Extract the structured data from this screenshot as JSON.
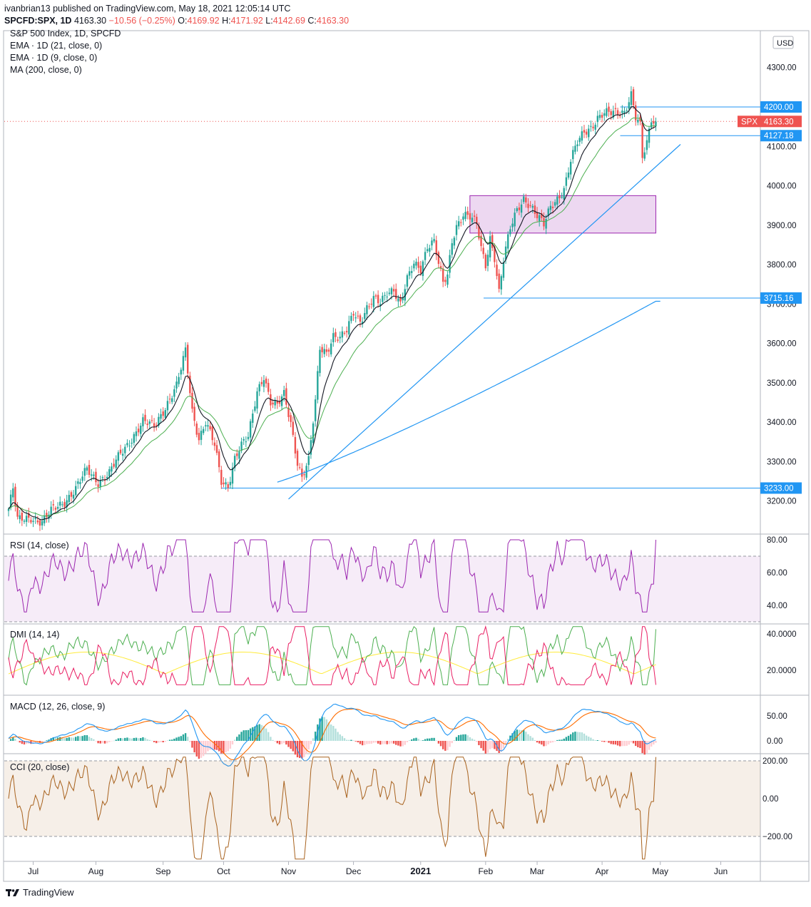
{
  "header": {
    "published_line": "ivanbrian13 published on TradingView.com, May 18, 2021 12:05:14 UTC",
    "symbol": "SPCFD:SPX, 1D",
    "price": "4163.30",
    "change": "−10.56 (−0.25%)",
    "o_label": "O:",
    "o": "4169.92",
    "h_label": "H:",
    "h": "4171.92",
    "l_label": "L:",
    "l": "4142.69",
    "c_label": "C:",
    "c": "4163.30"
  },
  "legend": {
    "title": "S&P 500 Index, 1D, SPCFD",
    "ema21": "EMA · 1D (21, close, 0)",
    "ema9": "EMA · 1D (9, close, 0)",
    "ma200": "MA (200, close, 0)"
  },
  "currency": "USD",
  "price_tag": {
    "symbol": "SPX",
    "value": "4163.30"
  },
  "level_tags": [
    "4200.00",
    "4127.18",
    "3715.16",
    "3233.00"
  ],
  "indicators": {
    "rsi": "RSI (14, close)",
    "dmi": "DMI (14, 14)",
    "macd": "MACD (12, 26, close, 9)",
    "cci": "CCI (20, close)"
  },
  "footer": {
    "brand": "TradingView"
  },
  "colors": {
    "up": "#26a69a",
    "down": "#ef5350",
    "ema9": "#131722",
    "ema21": "#4caf50",
    "ma200": "#2196f3",
    "trend": "#2196f3",
    "rsi": "#9c27b0",
    "macd": "#2196f3",
    "signal": "#ff6d00",
    "cci": "#a8621e",
    "dmi_plus": "#4caf50",
    "dmi_minus": "#e91e63",
    "adx": "#ffeb3b"
  },
  "chart_data": [
    {
      "type": "candlestick",
      "title": "S&P 500 Index, 1D, SPCFD",
      "x_ticks": [
        "Jul",
        "Aug",
        "Sep",
        "Oct",
        "Nov",
        "Dec",
        "2021",
        "Feb",
        "Mar",
        "Apr",
        "May",
        "Jun"
      ],
      "y_ticks": [
        3200,
        3300,
        3400,
        3500,
        3600,
        3700,
        3800,
        3900,
        4000,
        4100,
        4200,
        4300
      ],
      "ylim": [
        3120,
        4380
      ],
      "close_anchors": [
        [
          0,
          3180
        ],
        [
          2,
          3230
        ],
        [
          4,
          3150
        ],
        [
          10,
          3160
        ],
        [
          15,
          3145
        ],
        [
          20,
          3180
        ],
        [
          25,
          3200
        ],
        [
          30,
          3230
        ],
        [
          35,
          3280
        ],
        [
          40,
          3250
        ],
        [
          45,
          3270
        ],
        [
          50,
          3320
        ],
        [
          55,
          3360
        ],
        [
          60,
          3400
        ],
        [
          65,
          3390
        ],
        [
          70,
          3440
        ],
        [
          75,
          3490
        ],
        [
          79,
          3580
        ],
        [
          82,
          3430
        ],
        [
          85,
          3360
        ],
        [
          88,
          3400
        ],
        [
          92,
          3340
        ],
        [
          95,
          3250
        ],
        [
          98,
          3240
        ],
        [
          101,
          3310
        ],
        [
          104,
          3340
        ],
        [
          107,
          3360
        ],
        [
          111,
          3480
        ],
        [
          114,
          3520
        ],
        [
          117,
          3450
        ],
        [
          120,
          3440
        ],
        [
          123,
          3470
        ],
        [
          126,
          3400
        ],
        [
          129,
          3300
        ],
        [
          131,
          3260
        ],
        [
          134,
          3300
        ],
        [
          137,
          3450
        ],
        [
          139,
          3590
        ],
        [
          142,
          3580
        ],
        [
          145,
          3620
        ],
        [
          148,
          3610
        ],
        [
          151,
          3630
        ],
        [
          154,
          3680
        ],
        [
          157,
          3660
        ],
        [
          160,
          3690
        ],
        [
          163,
          3710
        ],
        [
          166,
          3700
        ],
        [
          169,
          3730
        ],
        [
          172,
          3740
        ],
        [
          175,
          3700
        ],
        [
          178,
          3760
        ],
        [
          181,
          3800
        ],
        [
          184,
          3790
        ],
        [
          187,
          3850
        ],
        [
          190,
          3860
        ],
        [
          192,
          3800
        ],
        [
          194,
          3750
        ],
        [
          196,
          3770
        ],
        [
          198,
          3860
        ],
        [
          200,
          3900
        ],
        [
          203,
          3930
        ],
        [
          206,
          3920
        ],
        [
          209,
          3900
        ],
        [
          211,
          3840
        ],
        [
          213,
          3800
        ],
        [
          215,
          3870
        ],
        [
          217,
          3820
        ],
        [
          219,
          3730
        ],
        [
          221,
          3810
        ],
        [
          224,
          3890
        ],
        [
          227,
          3940
        ],
        [
          230,
          3970
        ],
        [
          233,
          3950
        ],
        [
          236,
          3920
        ],
        [
          239,
          3900
        ],
        [
          242,
          3950
        ],
        [
          245,
          3970
        ],
        [
          248,
          3990
        ],
        [
          251,
          4060
        ],
        [
          254,
          4110
        ],
        [
          257,
          4140
        ],
        [
          260,
          4150
        ],
        [
          263,
          4170
        ],
        [
          266,
          4180
        ],
        [
          269,
          4185
        ],
        [
          272,
          4190
        ],
        [
          275,
          4190
        ],
        [
          278,
          4230
        ],
        [
          280,
          4170
        ],
        [
          282,
          4150
        ],
        [
          283,
          4070
        ],
        [
          285,
          4110
        ],
        [
          287,
          4173
        ],
        [
          289,
          4163
        ]
      ],
      "levels": [
        4200.0,
        4127.18,
        3715.16,
        3233.0
      ],
      "box": {
        "from_index": 206,
        "to_index": 289,
        "high": 3975,
        "low": 3880
      },
      "trendline": {
        "from": [
          125,
          3205
        ],
        "to": [
          300,
          4105
        ]
      }
    },
    {
      "type": "line",
      "name": "RSI (14, close)",
      "y_ticks": [
        40,
        60,
        80
      ],
      "band": [
        30,
        70
      ]
    },
    {
      "type": "line",
      "name": "DMI (14, 14)",
      "y_ticks": [
        20,
        40
      ]
    },
    {
      "type": "line",
      "name": "MACD (12, 26, close, 9)",
      "y_ticks": [
        0,
        50
      ]
    },
    {
      "type": "line",
      "name": "CCI (20, close)",
      "y_ticks": [
        -200,
        0,
        200
      ],
      "band": [
        -100,
        100
      ]
    }
  ]
}
